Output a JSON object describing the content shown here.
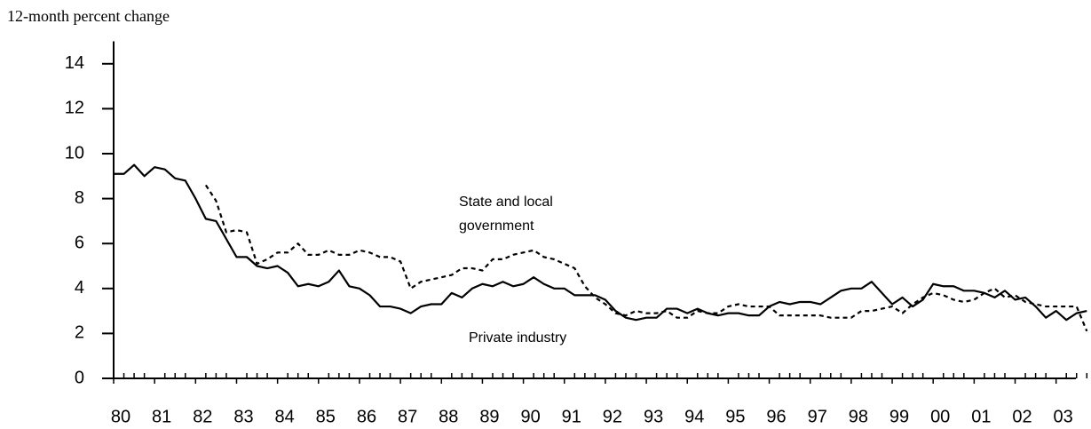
{
  "chart_data": {
    "type": "line",
    "y_axis_label": "12-month percent change",
    "annotations": [
      {
        "lines": [
          "State and local",
          "government"
        ]
      },
      {
        "lines": [
          "Private industry"
        ]
      }
    ],
    "categories": [
      "80",
      null,
      null,
      null,
      "81",
      null,
      null,
      null,
      "82",
      null,
      null,
      null,
      "83",
      null,
      null,
      null,
      "84",
      null,
      null,
      null,
      "85",
      null,
      null,
      null,
      "86",
      null,
      null,
      null,
      "87",
      null,
      null,
      null,
      "88",
      null,
      null,
      null,
      "89",
      null,
      null,
      null,
      "90",
      null,
      null,
      null,
      "91",
      null,
      null,
      null,
      "92",
      null,
      null,
      null,
      "93",
      null,
      null,
      null,
      "94",
      null,
      null,
      null,
      "95",
      null,
      null,
      null,
      "96",
      null,
      null,
      null,
      "97",
      null,
      null,
      null,
      "98",
      null,
      null,
      null,
      "99",
      null,
      null,
      null,
      "00",
      null,
      null,
      null,
      "01",
      null,
      null,
      null,
      "02",
      null,
      null,
      null,
      "03",
      null,
      null,
      null
    ],
    "series": [
      {
        "name": "Private industry",
        "color": "#000000",
        "style": "solid",
        "values": [
          9.1,
          9.1,
          9.5,
          9.0,
          9.4,
          9.3,
          8.9,
          8.8,
          8.0,
          7.1,
          7.0,
          6.2,
          5.4,
          5.4,
          5.0,
          4.9,
          5.0,
          4.7,
          4.1,
          4.2,
          4.1,
          4.3,
          4.8,
          4.1,
          4.0,
          3.7,
          3.2,
          3.2,
          3.1,
          2.9,
          3.2,
          3.3,
          3.3,
          3.8,
          3.6,
          4.0,
          4.2,
          4.1,
          4.3,
          4.1,
          4.2,
          4.5,
          4.2,
          4.0,
          4.0,
          3.7,
          3.7,
          3.7,
          3.5,
          3.0,
          2.7,
          2.6,
          2.7,
          2.7,
          3.1,
          3.1,
          2.9,
          3.1,
          2.9,
          2.8,
          2.9,
          2.9,
          2.8,
          2.8,
          3.2,
          3.4,
          3.3,
          3.4,
          3.4,
          3.3,
          3.6,
          3.9,
          4.0,
          4.0,
          4.3,
          3.8,
          3.3,
          3.6,
          3.2,
          3.5,
          4.2,
          4.1,
          4.1,
          3.9,
          3.9,
          3.8,
          3.6,
          3.9,
          3.5,
          3.6,
          3.2,
          2.7,
          3.0,
          2.6,
          2.9,
          3.0
        ]
      },
      {
        "name": "State and local government",
        "color": "#000000",
        "style": "dashed",
        "values": [
          null,
          null,
          null,
          null,
          null,
          null,
          null,
          null,
          null,
          8.6,
          7.9,
          6.5,
          6.6,
          6.5,
          5.1,
          5.3,
          5.6,
          5.6,
          6.0,
          5.5,
          5.5,
          5.7,
          5.5,
          5.5,
          5.7,
          5.6,
          5.4,
          5.4,
          5.2,
          4.0,
          4.3,
          4.4,
          4.5,
          4.6,
          4.9,
          4.9,
          4.8,
          5.3,
          5.3,
          5.5,
          5.6,
          5.7,
          5.4,
          5.3,
          5.1,
          4.9,
          4.1,
          3.6,
          3.3,
          2.9,
          2.8,
          3.0,
          2.9,
          2.9,
          3.0,
          2.7,
          2.7,
          3.0,
          2.9,
          2.9,
          3.2,
          3.3,
          3.2,
          3.2,
          3.2,
          2.8,
          2.8,
          2.8,
          2.8,
          2.8,
          2.7,
          2.7,
          2.7,
          3.0,
          3.0,
          3.1,
          3.2,
          2.9,
          3.3,
          3.6,
          3.8,
          3.7,
          3.5,
          3.4,
          3.5,
          3.8,
          4.0,
          3.6,
          3.7,
          3.4,
          3.3,
          3.2,
          3.2,
          3.2,
          3.2,
          2.1
        ]
      }
    ],
    "ylim": [
      0,
      15
    ],
    "yticks": [
      0,
      2,
      4,
      6,
      8,
      10,
      12,
      14
    ],
    "grid": false
  }
}
